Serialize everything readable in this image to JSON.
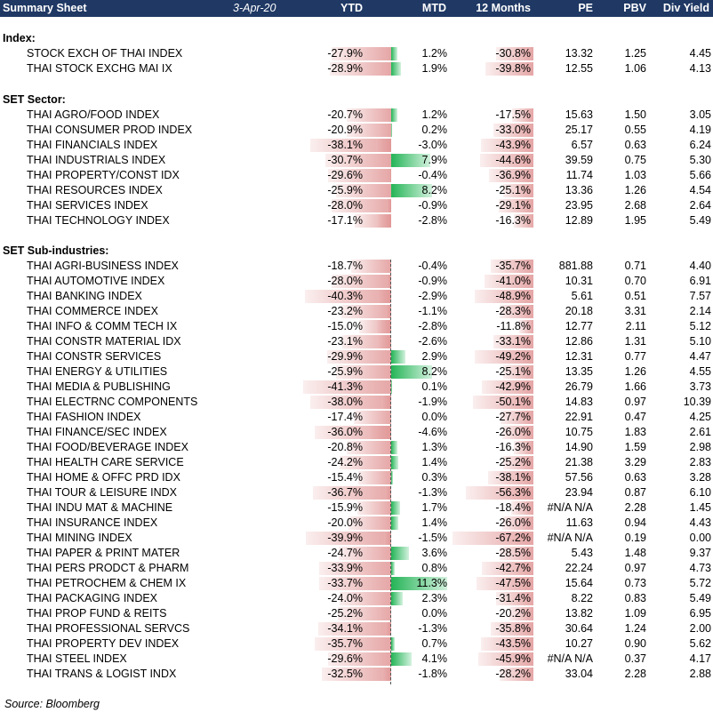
{
  "header": {
    "title": "Summary Sheet",
    "date": "3-Apr-20",
    "columns": [
      "YTD",
      "MTD",
      "12 Months",
      "PE",
      "PBV",
      "Div Yield"
    ]
  },
  "sections": [
    {
      "title": "Index:",
      "rows": [
        {
          "name": "STOCK EXCH OF THAI INDEX",
          "ytd": "-27.9%",
          "mtd": "1.2%",
          "m12": "-30.8%",
          "pe": "13.32",
          "pbv": "1.25",
          "dy": "4.45"
        },
        {
          "name": "THAI STOCK EXCHG MAI IX",
          "ytd": "-28.9%",
          "mtd": "1.9%",
          "m12": "-39.8%",
          "pe": "12.55",
          "pbv": "1.06",
          "dy": "4.13"
        }
      ]
    },
    {
      "title": "SET Sector:",
      "rows": [
        {
          "name": "THAI AGRO/FOOD INDEX",
          "ytd": "-20.7%",
          "mtd": "1.2%",
          "m12": "-17.5%",
          "pe": "15.63",
          "pbv": "1.50",
          "dy": "3.05"
        },
        {
          "name": "THAI CONSUMER PROD INDEX",
          "ytd": "-20.9%",
          "mtd": "0.2%",
          "m12": "-33.0%",
          "pe": "25.17",
          "pbv": "0.55",
          "dy": "4.19"
        },
        {
          "name": "THAI FINANCIALS INDEX",
          "ytd": "-38.1%",
          "mtd": "-3.0%",
          "m12": "-43.9%",
          "pe": "6.57",
          "pbv": "0.63",
          "dy": "6.24"
        },
        {
          "name": "THAI INDUSTRIALS INDEX",
          "ytd": "-30.7%",
          "mtd": "7.9%",
          "m12": "-44.6%",
          "pe": "39.59",
          "pbv": "0.75",
          "dy": "5.30"
        },
        {
          "name": "THAI PROPERTY/CONST IDX",
          "ytd": "-29.6%",
          "mtd": "-0.4%",
          "m12": "-36.9%",
          "pe": "11.74",
          "pbv": "1.03",
          "dy": "5.66"
        },
        {
          "name": "THAI RESOURCES INDEX",
          "ytd": "-25.9%",
          "mtd": "8.2%",
          "m12": "-25.1%",
          "pe": "13.36",
          "pbv": "1.26",
          "dy": "4.54"
        },
        {
          "name": "THAI SERVICES INDEX",
          "ytd": "-28.0%",
          "mtd": "-0.9%",
          "m12": "-29.1%",
          "pe": "23.95",
          "pbv": "2.68",
          "dy": "2.64"
        },
        {
          "name": "THAI TECHNOLOGY INDEX",
          "ytd": "-17.1%",
          "mtd": "-2.8%",
          "m12": "-16.3%",
          "pe": "12.89",
          "pbv": "1.95",
          "dy": "5.49"
        }
      ]
    },
    {
      "title": "SET Sub-industries:",
      "rows": [
        {
          "name": "THAI AGRI-BUSINESS INDEX",
          "ytd": "-18.7%",
          "mtd": "-0.4%",
          "m12": "-35.7%",
          "pe": "881.88",
          "pbv": "0.71",
          "dy": "4.40"
        },
        {
          "name": "THAI AUTOMOTIVE INDEX",
          "ytd": "-28.0%",
          "mtd": "-0.9%",
          "m12": "-41.0%",
          "pe": "10.31",
          "pbv": "0.70",
          "dy": "6.91"
        },
        {
          "name": "THAI BANKING INDEX",
          "ytd": "-40.3%",
          "mtd": "-2.9%",
          "m12": "-48.9%",
          "pe": "5.61",
          "pbv": "0.51",
          "dy": "7.57"
        },
        {
          "name": "THAI COMMERCE INDEX",
          "ytd": "-23.2%",
          "mtd": "-1.1%",
          "m12": "-28.3%",
          "pe": "20.18",
          "pbv": "3.31",
          "dy": "2.14"
        },
        {
          "name": "THAI INFO & COMM TECH IX",
          "ytd": "-15.0%",
          "mtd": "-2.8%",
          "m12": "-11.8%",
          "pe": "12.77",
          "pbv": "2.11",
          "dy": "5.12"
        },
        {
          "name": "THAI CONSTR MATERIAL IDX",
          "ytd": "-23.1%",
          "mtd": "-2.6%",
          "m12": "-33.1%",
          "pe": "12.86",
          "pbv": "1.31",
          "dy": "5.10"
        },
        {
          "name": "THAI CONSTR SERVICES",
          "ytd": "-29.9%",
          "mtd": "2.9%",
          "m12": "-49.2%",
          "pe": "12.31",
          "pbv": "0.77",
          "dy": "4.47"
        },
        {
          "name": "THAI ENERGY & UTILITIES",
          "ytd": "-25.9%",
          "mtd": "8.2%",
          "m12": "-25.1%",
          "pe": "13.35",
          "pbv": "1.26",
          "dy": "4.55"
        },
        {
          "name": "THAI MEDIA & PUBLISHING",
          "ytd": "-41.3%",
          "mtd": "0.1%",
          "m12": "-42.9%",
          "pe": "26.79",
          "pbv": "1.66",
          "dy": "3.73"
        },
        {
          "name": "THAI ELECTRNC COMPONENTS",
          "ytd": "-38.0%",
          "mtd": "-1.9%",
          "m12": "-50.1%",
          "pe": "14.83",
          "pbv": "0.97",
          "dy": "10.39"
        },
        {
          "name": "THAI FASHION INDEX",
          "ytd": "-17.4%",
          "mtd": "0.0%",
          "m12": "-27.7%",
          "pe": "22.91",
          "pbv": "0.47",
          "dy": "4.25"
        },
        {
          "name": "THAI FINANCE/SEC INDEX",
          "ytd": "-36.0%",
          "mtd": "-4.6%",
          "m12": "-26.0%",
          "pe": "10.75",
          "pbv": "1.83",
          "dy": "2.61"
        },
        {
          "name": "THAI FOOD/BEVERAGE INDEX",
          "ytd": "-20.8%",
          "mtd": "1.3%",
          "m12": "-16.3%",
          "pe": "14.90",
          "pbv": "1.59",
          "dy": "2.98"
        },
        {
          "name": "THAI HEALTH CARE SERVICE",
          "ytd": "-24.2%",
          "mtd": "1.4%",
          "m12": "-25.2%",
          "pe": "21.38",
          "pbv": "3.29",
          "dy": "2.83"
        },
        {
          "name": "THAI HOME & OFFC PRD IDX",
          "ytd": "-15.4%",
          "mtd": "0.3%",
          "m12": "-38.1%",
          "pe": "57.56",
          "pbv": "0.63",
          "dy": "3.28"
        },
        {
          "name": "THAI TOUR & LEISURE INDX",
          "ytd": "-36.7%",
          "mtd": "-1.3%",
          "m12": "-56.3%",
          "pe": "23.94",
          "pbv": "0.87",
          "dy": "6.10"
        },
        {
          "name": "THAI INDU MAT & MACHINE",
          "ytd": "-15.9%",
          "mtd": "1.7%",
          "m12": "-18.4%",
          "pe": "#N/A N/A",
          "pbv": "2.28",
          "dy": "1.45"
        },
        {
          "name": "THAI INSURANCE INDEX",
          "ytd": "-20.0%",
          "mtd": "1.4%",
          "m12": "-26.0%",
          "pe": "11.63",
          "pbv": "0.94",
          "dy": "4.43"
        },
        {
          "name": "THAI MINING INDEX",
          "ytd": "-39.9%",
          "mtd": "-1.5%",
          "m12": "-67.2%",
          "pe": "#N/A N/A",
          "pbv": "0.19",
          "dy": "0.00"
        },
        {
          "name": "THAI PAPER & PRINT MATER",
          "ytd": "-24.7%",
          "mtd": "3.6%",
          "m12": "-28.5%",
          "pe": "5.43",
          "pbv": "1.48",
          "dy": "9.37"
        },
        {
          "name": "THAI PERS PRODCT & PHARM",
          "ytd": "-33.9%",
          "mtd": "0.8%",
          "m12": "-42.7%",
          "pe": "22.24",
          "pbv": "0.97",
          "dy": "4.73"
        },
        {
          "name": "THAI PETROCHEM & CHEM IX",
          "ytd": "-33.7%",
          "mtd": "11.3%",
          "m12": "-47.5%",
          "pe": "15.64",
          "pbv": "0.73",
          "dy": "5.72"
        },
        {
          "name": "THAI PACKAGING INDEX",
          "ytd": "-24.0%",
          "mtd": "2.3%",
          "m12": "-31.4%",
          "pe": "8.22",
          "pbv": "0.83",
          "dy": "5.49"
        },
        {
          "name": "THAI PROP FUND & REITS",
          "ytd": "-25.2%",
          "mtd": "0.0%",
          "m12": "-20.2%",
          "pe": "13.82",
          "pbv": "1.09",
          "dy": "6.95"
        },
        {
          "name": "THAI PROFESSIONAL SERVCS",
          "ytd": "-34.1%",
          "mtd": "-1.3%",
          "m12": "-35.8%",
          "pe": "30.64",
          "pbv": "1.24",
          "dy": "2.00"
        },
        {
          "name": "THAI PROPERTY DEV INDEX",
          "ytd": "-35.7%",
          "mtd": "0.7%",
          "m12": "-43.5%",
          "pe": "10.27",
          "pbv": "0.90",
          "dy": "5.62"
        },
        {
          "name": "THAI STEEL INDEX",
          "ytd": "-29.6%",
          "mtd": "4.1%",
          "m12": "-45.9%",
          "pe": "#N/A N/A",
          "pbv": "0.37",
          "dy": "4.17"
        },
        {
          "name": "THAI TRANS & LOGIST INDX",
          "ytd": "-32.5%",
          "mtd": "-1.8%",
          "m12": "-28.2%",
          "pe": "33.04",
          "pbv": "2.28",
          "dy": "2.88"
        }
      ]
    }
  ],
  "footer": {
    "source": "Source: Bloomberg"
  },
  "colors": {
    "header_bg": "#1f3864",
    "negative_bar": "#e19696",
    "positive_bar": "#25b457"
  }
}
